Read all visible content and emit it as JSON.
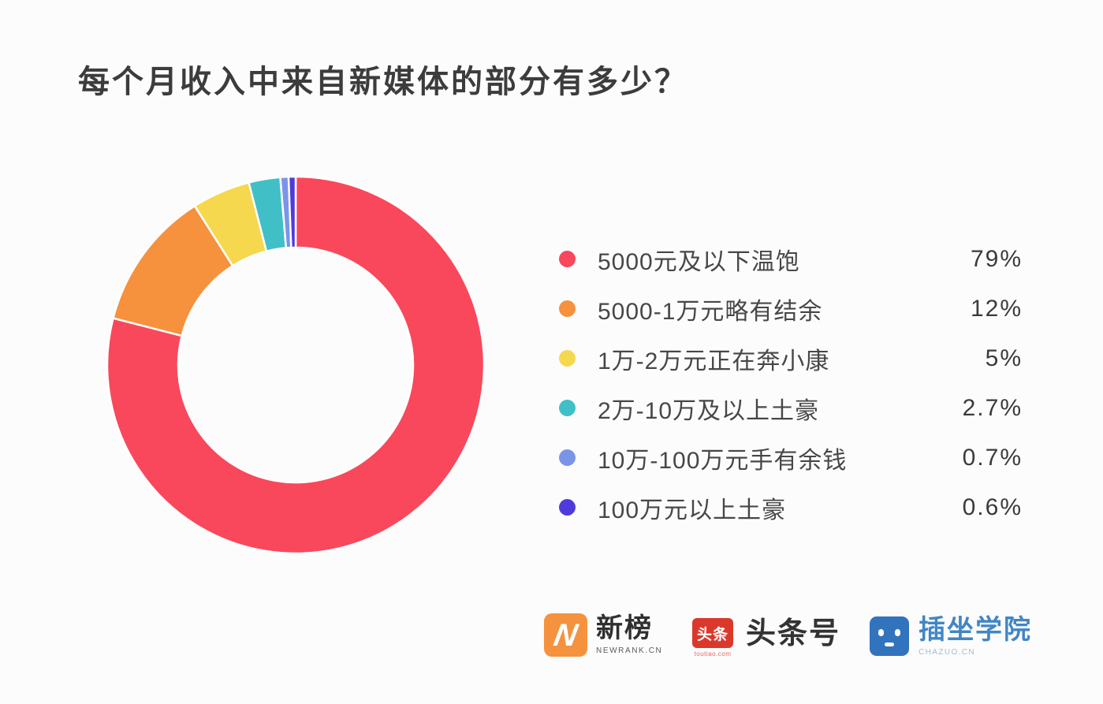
{
  "chart_data": {
    "type": "pie",
    "subtype": "donut",
    "title": "每个月收入中来自新媒体的部分有多少？",
    "start_angle_deg": 0,
    "direction": "clockwise",
    "inner_radius_ratio": 0.625,
    "legend_position": "right",
    "gap_color": "#FFFFFF",
    "items": [
      {
        "label": "5000元及以下温饱",
        "value": 79,
        "percent_label": "79%",
        "color": "#F9485B"
      },
      {
        "label": "5000-1万元略有结余",
        "value": 12,
        "percent_label": "12%",
        "color": "#F6913E"
      },
      {
        "label": "1万-2万元正在奔小康",
        "value": 5,
        "percent_label": "5%",
        "color": "#F6D84E"
      },
      {
        "label": "2万-10万及以上土豪",
        "value": 2.7,
        "percent_label": "2.7%",
        "color": "#41BFC6"
      },
      {
        "label": "10万-100万元手有余钱",
        "value": 0.7,
        "percent_label": "0.7%",
        "color": "#7A95E8"
      },
      {
        "label": "100万元以上土豪",
        "value": 0.6,
        "percent_label": "0.6%",
        "color": "#4F3BDB"
      }
    ]
  },
  "footer": {
    "logos": [
      {
        "name": "newrank",
        "icon_letter": "N",
        "icon_color": "#F5923D",
        "text": "新榜",
        "subtext": "NEWRANK.CN"
      },
      {
        "name": "toutiao",
        "icon_text": "头条",
        "icon_color": "#DB382C",
        "text": "头条号",
        "subtext": "toutiao.com"
      },
      {
        "name": "chazuo",
        "icon_color": "#3273BE",
        "text": "插坐学院",
        "subtext": "CHAZUO.CN"
      }
    ]
  }
}
